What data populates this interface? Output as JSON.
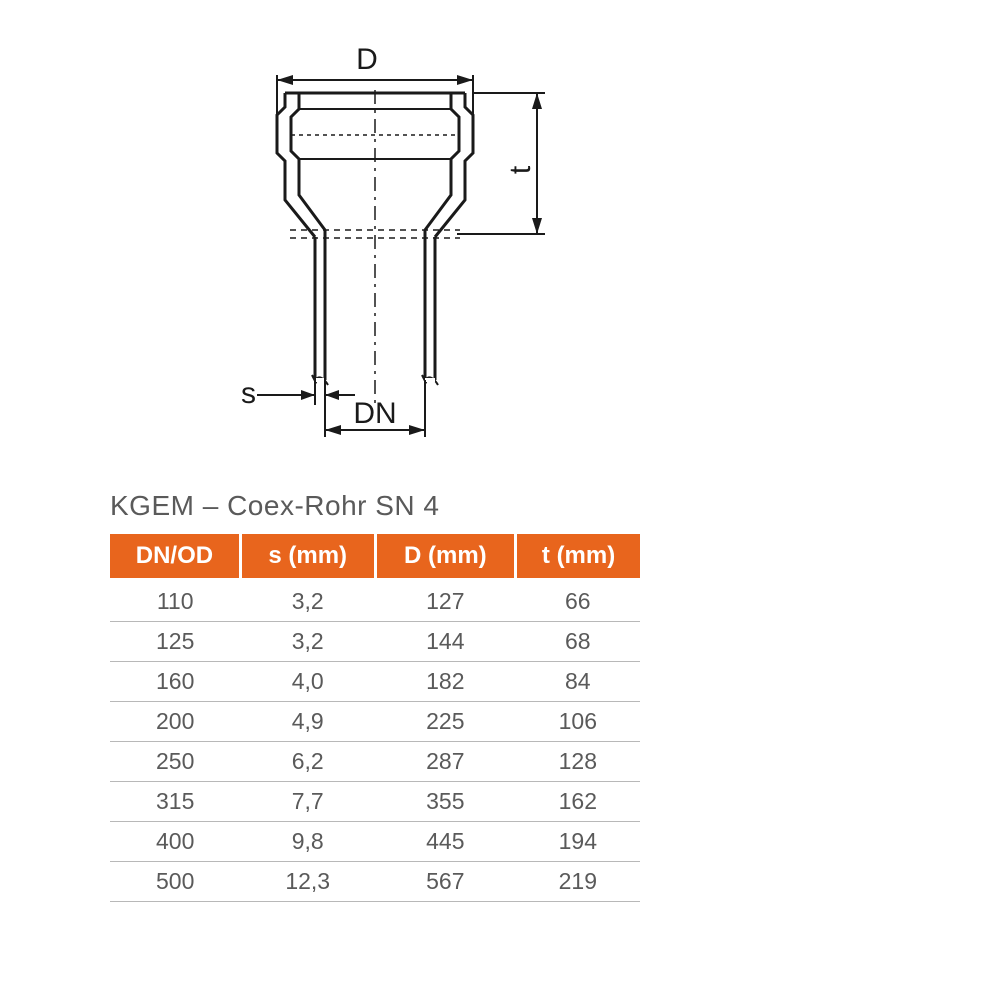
{
  "diagram": {
    "labels": {
      "D": "D",
      "t": "t",
      "s": "s",
      "DN": "DN"
    },
    "stroke_color": "#1a1a1a",
    "stroke_width_main": 3,
    "stroke_width_dim": 2
  },
  "table": {
    "title": "KGEM – Coex-Rohr SN 4",
    "header_bg": "#e8651d",
    "header_fg": "#ffffff",
    "cell_fg": "#5a5a5a",
    "border_color": "#b8b8b8",
    "columns": [
      "DN/OD",
      "s (mm)",
      "D (mm)",
      "t (mm)"
    ],
    "rows": [
      [
        "110",
        "3,2",
        "127",
        "66"
      ],
      [
        "125",
        "3,2",
        "144",
        "68"
      ],
      [
        "160",
        "4,0",
        "182",
        "84"
      ],
      [
        "200",
        "4,9",
        "225",
        "106"
      ],
      [
        "250",
        "6,2",
        "287",
        "128"
      ],
      [
        "315",
        "7,7",
        "355",
        "162"
      ],
      [
        "400",
        "9,8",
        "445",
        "194"
      ],
      [
        "500",
        "12,3",
        "567",
        "219"
      ]
    ]
  }
}
